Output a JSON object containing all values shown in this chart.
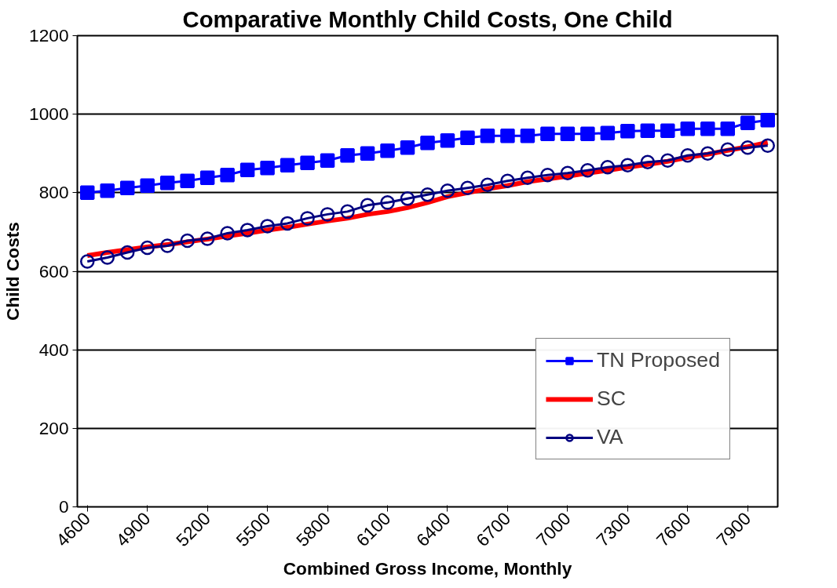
{
  "chart_data": {
    "type": "line",
    "title": "Comparative Monthly Child Costs, One Child",
    "xlabel": "Combined Gross Income, Monthly",
    "ylabel": "Child Costs",
    "x": [
      4600,
      4700,
      4800,
      4900,
      5000,
      5100,
      5200,
      5300,
      5400,
      5500,
      5600,
      5700,
      5800,
      5900,
      6000,
      6100,
      6200,
      6300,
      6400,
      6500,
      6600,
      6700,
      6800,
      6900,
      7000,
      7100,
      7200,
      7300,
      7400,
      7500,
      7600,
      7700,
      7800,
      7900,
      8000
    ],
    "series": [
      {
        "name": "TN Proposed",
        "color": "#0000ff",
        "marker": "square",
        "values": [
          800,
          805,
          812,
          818,
          825,
          830,
          838,
          845,
          858,
          863,
          870,
          876,
          882,
          895,
          900,
          907,
          915,
          927,
          933,
          940,
          945,
          945,
          945,
          950,
          950,
          950,
          952,
          957,
          958,
          958,
          963,
          963,
          963,
          978,
          985
        ]
      },
      {
        "name": "SC",
        "color": "#ff0000",
        "values": [
          640,
          648,
          655,
          662,
          668,
          675,
          682,
          690,
          697,
          705,
          712,
          720,
          728,
          735,
          745,
          752,
          762,
          775,
          790,
          800,
          810,
          818,
          828,
          835,
          842,
          850,
          857,
          865,
          872,
          880,
          890,
          898,
          908,
          917,
          928
        ]
      },
      {
        "name": "VA",
        "color": "#000080",
        "marker": "circle",
        "values": [
          625,
          635,
          648,
          660,
          665,
          678,
          683,
          697,
          705,
          715,
          722,
          735,
          745,
          752,
          768,
          775,
          785,
          795,
          805,
          812,
          820,
          830,
          838,
          845,
          850,
          857,
          865,
          870,
          878,
          882,
          895,
          900,
          910,
          915,
          920
        ]
      }
    ],
    "xlim": [
      4550,
      8050
    ],
    "xticks": [
      4600,
      4900,
      5200,
      5500,
      5800,
      6100,
      6400,
      6700,
      7000,
      7300,
      7600,
      7900
    ],
    "ylim": [
      0,
      1200
    ],
    "yticks": [
      0,
      200,
      400,
      600,
      800,
      1000,
      1200
    ],
    "grid": "y",
    "legend": "bottom right"
  }
}
